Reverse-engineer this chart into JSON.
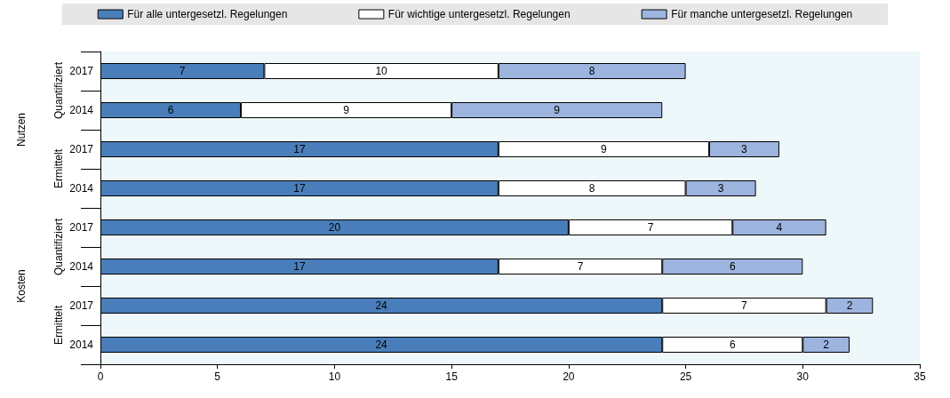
{
  "chart_data": {
    "type": "bar",
    "orientation": "horizontal",
    "stacked": true,
    "data_labels": true,
    "grid": false,
    "legend": "top",
    "categories": [
      "2017",
      "2014",
      "2017",
      "2014",
      "2017",
      "2014",
      "2017",
      "2014"
    ],
    "annotations": [
      "Quantifiziert",
      "Ermittelt",
      "Quantifiziert",
      "Ermittelt",
      "Nutzen",
      "Kosten"
    ],
    "series": [
      {
        "name": "Für alle untergesetzl. Regelungen",
        "color": "#4a7ebb",
        "values": [
          7,
          6,
          17,
          17,
          20,
          17,
          24,
          24
        ]
      },
      {
        "name": "Für wichtige untergesetzl. Regelungen",
        "color": "#ffffff",
        "values": [
          10,
          9,
          9,
          8,
          7,
          7,
          7,
          6
        ]
      },
      {
        "name": "Für manche untergesetzl. Regelungen",
        "color": "#9cb4de",
        "values": [
          8,
          9,
          3,
          3,
          4,
          6,
          2,
          2
        ]
      }
    ],
    "xlim": [
      0,
      35
    ],
    "xticks": [
      0,
      5,
      10,
      15,
      20,
      25,
      30,
      35
    ]
  }
}
